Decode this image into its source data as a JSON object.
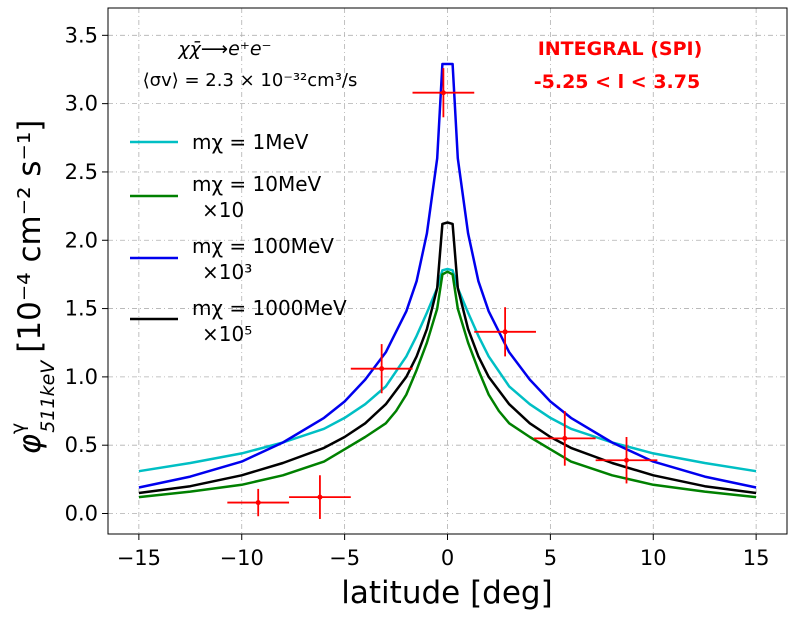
{
  "chart_data": {
    "type": "line",
    "title": "",
    "xlabel": "latitude [deg]",
    "ylabel": "φ511keV γ [10⁻⁴ cm⁻² s⁻¹]",
    "ylabel_parts": {
      "phi": "φ",
      "sup": "γ",
      "sub": "511keV",
      "units": "[10⁻⁴ cm⁻² s⁻¹]"
    },
    "xlim": [
      -16.5,
      16.5
    ],
    "ylim": [
      -0.15,
      3.7
    ],
    "xticks": [
      -15,
      -10,
      -5,
      0,
      5,
      10,
      15
    ],
    "xtick_labels": [
      "−15",
      "−10",
      "−5",
      "0",
      "5",
      "10",
      "15"
    ],
    "yticks": [
      0.0,
      0.5,
      1.0,
      1.5,
      2.0,
      2.5,
      3.0,
      3.5
    ],
    "ytick_labels": [
      "0.0",
      "0.5",
      "1.0",
      "1.5",
      "2.0",
      "2.5",
      "3.0",
      "3.5"
    ],
    "grid": true,
    "annotations": {
      "process": "χχ̄⟶e⁺e⁻",
      "cross_section": "⟨σv⟩ = 2.3 × 10⁻³²cm³/s",
      "instrument": "INTEGRAL (SPI)",
      "longitude_range": "-5.25 < l < 3.75"
    },
    "legend_position": "upper-left",
    "colors": {
      "cyan": "#00bfc4",
      "green": "#008000",
      "blue": "#0000ee",
      "black": "#000000",
      "red": "#ff0000",
      "grid": "#b0b0b0"
    },
    "series": [
      {
        "name": "mχ = 1MeV",
        "legend_lines": [
          "mχ = 1MeV"
        ],
        "color": "#00bfc4",
        "x": [
          -15,
          -12.5,
          -10,
          -8,
          -6,
          -5,
          -4,
          -3,
          -2,
          -1.5,
          -1,
          -0.5,
          -0.25,
          0,
          0.25,
          0.5,
          1,
          1.5,
          2,
          3,
          4,
          5,
          6,
          8,
          10,
          12.5,
          15
        ],
        "y": [
          0.31,
          0.37,
          0.44,
          0.52,
          0.62,
          0.7,
          0.8,
          0.93,
          1.15,
          1.3,
          1.47,
          1.65,
          1.78,
          1.79,
          1.78,
          1.65,
          1.47,
          1.3,
          1.15,
          0.93,
          0.8,
          0.7,
          0.62,
          0.52,
          0.44,
          0.37,
          0.31
        ]
      },
      {
        "name": "mχ = 10MeV ×10",
        "legend_lines": [
          "mχ = 10MeV",
          "×10"
        ],
        "color": "#008000",
        "x": [
          -15,
          -12.5,
          -10,
          -8,
          -6,
          -5,
          -4,
          -3,
          -2.5,
          -2,
          -1.5,
          -1,
          -0.5,
          -0.25,
          0,
          0.25,
          0.5,
          1,
          1.5,
          2,
          2.5,
          3,
          4,
          5,
          6,
          8,
          10,
          12.5,
          15
        ],
        "y": [
          0.12,
          0.16,
          0.21,
          0.28,
          0.38,
          0.47,
          0.56,
          0.66,
          0.75,
          0.87,
          1.05,
          1.25,
          1.5,
          1.75,
          1.77,
          1.75,
          1.5,
          1.25,
          1.05,
          0.87,
          0.75,
          0.66,
          0.56,
          0.47,
          0.38,
          0.28,
          0.21,
          0.16,
          0.12
        ]
      },
      {
        "name": "mχ = 100MeV ×10³",
        "legend_lines": [
          "mχ = 100MeV",
          "×10³"
        ],
        "color": "#0000ee",
        "x": [
          -15,
          -12.5,
          -10,
          -8,
          -6,
          -5,
          -4,
          -3,
          -2,
          -1.5,
          -1,
          -0.5,
          -0.25,
          0,
          0.25,
          0.5,
          1,
          1.5,
          2,
          3,
          4,
          5,
          6,
          8,
          10,
          12.5,
          15
        ],
        "y": [
          0.19,
          0.27,
          0.38,
          0.52,
          0.7,
          0.82,
          0.98,
          1.18,
          1.48,
          1.7,
          2.05,
          2.6,
          3.29,
          3.29,
          3.29,
          2.6,
          2.05,
          1.7,
          1.48,
          1.18,
          0.98,
          0.82,
          0.7,
          0.52,
          0.38,
          0.27,
          0.19
        ]
      },
      {
        "name": "mχ = 1000MeV ×10⁵",
        "legend_lines": [
          "mχ = 1000MeV",
          "×10⁵"
        ],
        "color": "#000000",
        "x": [
          -15,
          -12.5,
          -10,
          -8,
          -6,
          -5,
          -4,
          -3,
          -2,
          -1.5,
          -1,
          -0.5,
          -0.25,
          0,
          0.25,
          0.5,
          1,
          1.5,
          2,
          3,
          4,
          5,
          6,
          8,
          10,
          12.5,
          15
        ],
        "y": [
          0.15,
          0.2,
          0.28,
          0.37,
          0.48,
          0.56,
          0.66,
          0.8,
          1.0,
          1.15,
          1.35,
          1.65,
          2.12,
          2.13,
          2.12,
          1.65,
          1.35,
          1.15,
          1.0,
          0.8,
          0.66,
          0.56,
          0.48,
          0.37,
          0.28,
          0.2,
          0.15
        ]
      }
    ],
    "data_points": {
      "name": "INTEGRAL (SPI)",
      "color": "#ff0000",
      "points": [
        {
          "x": -9.2,
          "y": 0.08,
          "xerr": 1.5,
          "yerr": 0.1
        },
        {
          "x": -6.2,
          "y": 0.12,
          "xerr": 1.5,
          "yerr": 0.16
        },
        {
          "x": -3.2,
          "y": 1.06,
          "xerr": 1.5,
          "yerr": 0.18
        },
        {
          "x": -0.2,
          "y": 3.08,
          "xerr": 1.5,
          "yerr": 0.18
        },
        {
          "x": 2.8,
          "y": 1.33,
          "xerr": 1.5,
          "yerr": 0.18
        },
        {
          "x": 5.7,
          "y": 0.55,
          "xerr": 1.5,
          "yerr": 0.2
        },
        {
          "x": 8.7,
          "y": 0.39,
          "xerr": 1.5,
          "yerr": 0.17
        }
      ]
    }
  }
}
